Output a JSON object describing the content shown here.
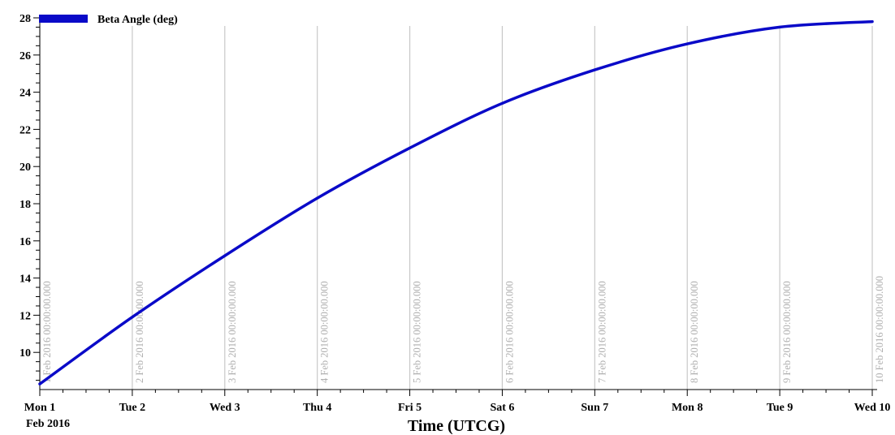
{
  "chart_data": {
    "type": "line",
    "xlabel": "Time (UTCG)",
    "ylabel": "",
    "ylim": [
      8,
      28
    ],
    "yticks": [
      10,
      12,
      14,
      16,
      18,
      20,
      22,
      24,
      26,
      28
    ],
    "ytick_labels": [
      "10",
      "12",
      "14",
      "16",
      "18",
      "20",
      "22",
      "24",
      "26",
      "28"
    ],
    "xlim": [
      "2016-02-01",
      "2016-02-10"
    ],
    "xtick_labels": [
      {
        "date": "2016-02-01",
        "line1": "Mon 1",
        "line2": "Feb 2016"
      },
      {
        "date": "2016-02-02",
        "line1": "Tue 2",
        "line2": ""
      },
      {
        "date": "2016-02-03",
        "line1": "Wed 3",
        "line2": ""
      },
      {
        "date": "2016-02-04",
        "line1": "Thu 4",
        "line2": ""
      },
      {
        "date": "2016-02-05",
        "line1": "Fri 5",
        "line2": ""
      },
      {
        "date": "2016-02-06",
        "line1": "Sat 6",
        "line2": ""
      },
      {
        "date": "2016-02-07",
        "line1": "Sun 7",
        "line2": ""
      },
      {
        "date": "2016-02-08",
        "line1": "Mon 8",
        "line2": ""
      },
      {
        "date": "2016-02-09",
        "line1": "Tue 9",
        "line2": ""
      },
      {
        "date": "2016-02-10",
        "line1": "Wed 10",
        "line2": ""
      }
    ],
    "vertical_markers": [
      {
        "date": "2016-02-01",
        "label": "1 Feb 2016 00:00:00.000"
      },
      {
        "date": "2016-02-02",
        "label": "2 Feb 2016 00:00:00.000"
      },
      {
        "date": "2016-02-03",
        "label": "3 Feb 2016 00:00:00.000"
      },
      {
        "date": "2016-02-04",
        "label": "4 Feb 2016 00:00:00.000"
      },
      {
        "date": "2016-02-05",
        "label": "5 Feb 2016 00:00:00.000"
      },
      {
        "date": "2016-02-06",
        "label": "6 Feb 2016 00:00:00.000"
      },
      {
        "date": "2016-02-07",
        "label": "7 Feb 2016 00:00:00.000"
      },
      {
        "date": "2016-02-08",
        "label": "8 Feb 2016 00:00:00.000"
      },
      {
        "date": "2016-02-09",
        "label": "9 Feb 2016 00:00:00.000"
      },
      {
        "date": "2016-02-10",
        "label": "10 Feb 2016 00:00:00.000"
      }
    ],
    "series": [
      {
        "name": "Beta Angle (deg)",
        "color": "#0a0ac8",
        "points": [
          {
            "x": "2016-02-01",
            "y": 8.3
          },
          {
            "x": "2016-02-02",
            "y": 11.9
          },
          {
            "x": "2016-02-03",
            "y": 15.2
          },
          {
            "x": "2016-02-04",
            "y": 18.3
          },
          {
            "x": "2016-02-05",
            "y": 21.0
          },
          {
            "x": "2016-02-06",
            "y": 23.4
          },
          {
            "x": "2016-02-07",
            "y": 25.2
          },
          {
            "x": "2016-02-08",
            "y": 26.6
          },
          {
            "x": "2016-02-09",
            "y": 27.5
          },
          {
            "x": "2016-02-10",
            "y": 27.8
          }
        ]
      }
    ],
    "legend_position": "top-left",
    "grid": {
      "vertical": true,
      "horizontal": false
    }
  }
}
